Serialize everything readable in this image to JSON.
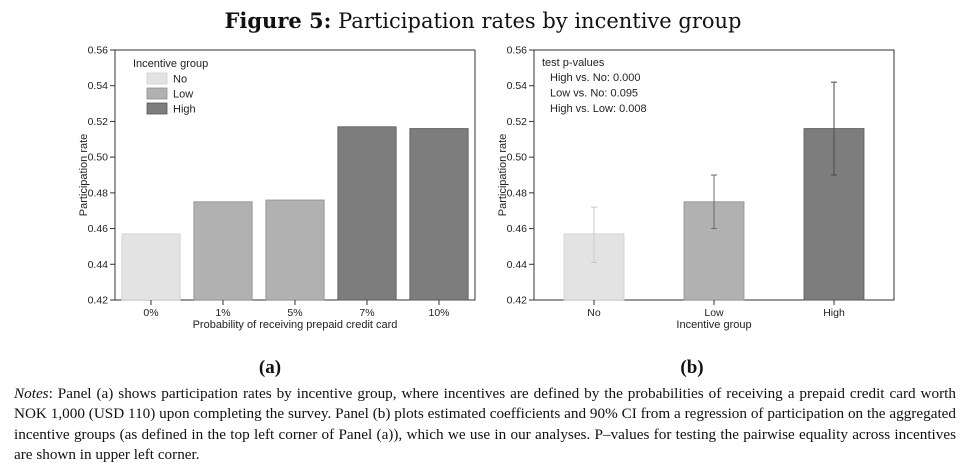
{
  "figure": {
    "label": "Figure 5:",
    "title": "Participation rates by incentive group",
    "panel_a_label": "(a)",
    "panel_b_label": "(b)",
    "notes_label": "Notes",
    "notes_text": ": Panel (a) shows participation rates by incentive group, where incentives are defined by the probabilities of receiving a prepaid credit card worth NOK 1,000 (USD 110) upon completing the survey. Panel (b) plots estimated coefficients and 90% CI from a regression of participation on the aggregated incentive groups (as defined in the top left corner of Panel (a)), which we use in our analyses. P–values for testing the pairwise equality across incentives are shown in upper left corner."
  },
  "colors": {
    "no": "#e3e3e3",
    "low": "#b1b1b1",
    "high": "#7d7d7d",
    "no_stroke": "#cfcfcf",
    "low_stroke": "#8f8f8f",
    "high_stroke": "#555555"
  },
  "chart_data": [
    {
      "type": "bar",
      "categories": [
        "0%",
        "1%",
        "5%",
        "7%",
        "10%"
      ],
      "values": [
        0.457,
        0.475,
        0.476,
        0.517,
        0.516
      ],
      "groups": [
        "no",
        "low",
        "low",
        "high",
        "high"
      ],
      "xlabel": "Probability of receiving prepaid credit card",
      "ylabel": "Participation rate",
      "ylim": [
        0.42,
        0.56
      ],
      "yticks": [
        "0.42",
        "0.44",
        "0.46",
        "0.48",
        "0.50",
        "0.52",
        "0.54",
        "0.56"
      ],
      "legend": {
        "title": "Incentive group",
        "entries": [
          "No",
          "Low",
          "High"
        ],
        "position": "top-left"
      }
    },
    {
      "type": "bar",
      "categories": [
        "No",
        "Low",
        "High"
      ],
      "values": [
        0.457,
        0.475,
        0.516
      ],
      "ci_low": [
        0.441,
        0.46,
        0.49
      ],
      "ci_high": [
        0.472,
        0.49,
        0.542
      ],
      "groups": [
        "no",
        "low",
        "high"
      ],
      "xlabel": "Incentive group",
      "ylabel": "Participation rate",
      "ylim": [
        0.42,
        0.56
      ],
      "yticks": [
        "0.42",
        "0.44",
        "0.46",
        "0.48",
        "0.50",
        "0.52",
        "0.54",
        "0.56"
      ],
      "annotation": {
        "title": "test p-values",
        "lines": [
          "High vs. No:  0.000",
          "Low vs. No:  0.095",
          "High vs. Low:  0.008"
        ]
      }
    }
  ]
}
